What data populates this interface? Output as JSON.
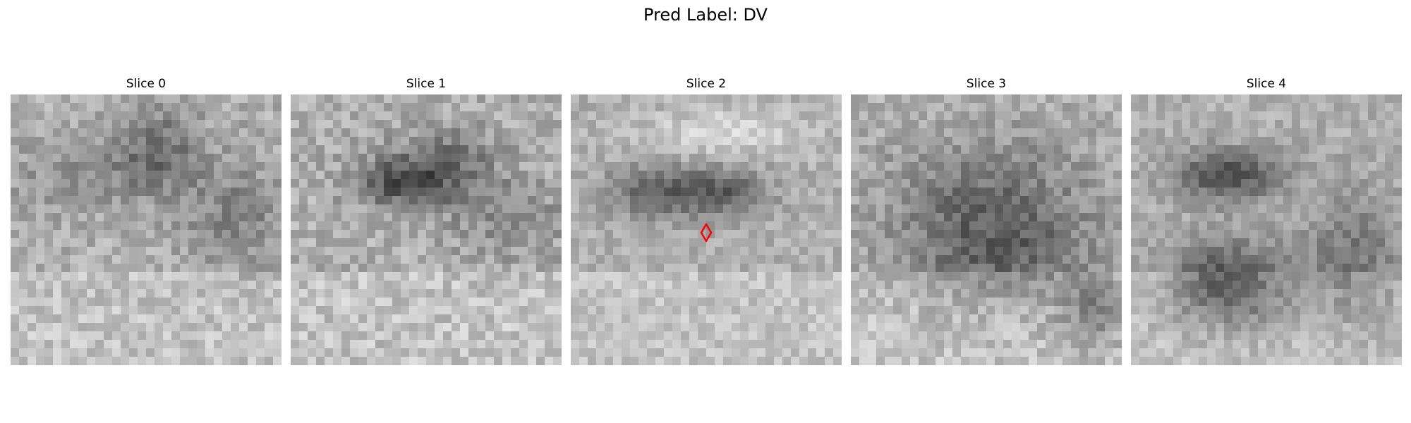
{
  "figure": {
    "title": "Pred Label: DV"
  },
  "panels": [
    {
      "title": "Slice 0"
    },
    {
      "title": "Slice 1"
    },
    {
      "title": "Slice 2",
      "marker": true
    },
    {
      "title": "Slice 3"
    },
    {
      "title": "Slice 4"
    }
  ],
  "colors": {
    "marker": "#ff0000",
    "colormap": "gray"
  }
}
